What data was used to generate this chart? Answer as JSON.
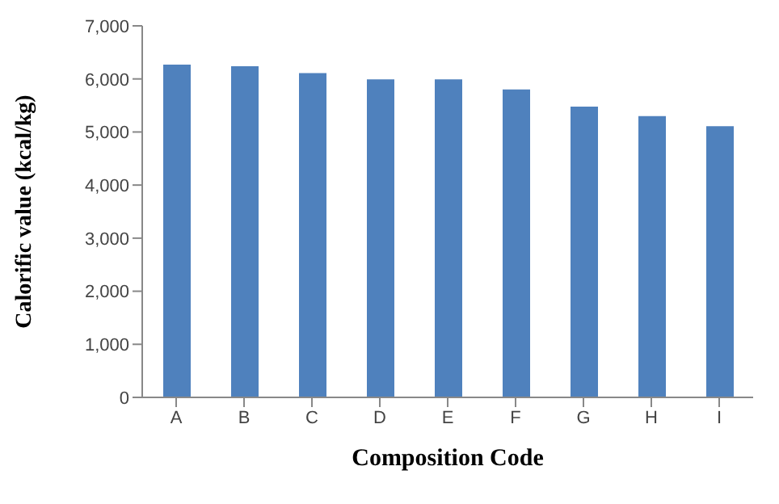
{
  "chart_data": {
    "type": "bar",
    "xlabel": "Composition Code",
    "ylabel": "Calorific value (kcal/kg)",
    "categories": [
      "A",
      "B",
      "C",
      "D",
      "E",
      "F",
      "G",
      "H",
      "I"
    ],
    "values": [
      6270,
      6240,
      6110,
      5990,
      5990,
      5800,
      5480,
      5300,
      5110
    ],
    "color": "#4f81bd",
    "ylim": [
      0,
      7000
    ],
    "yticks": [
      0,
      {
        "value": 1000,
        "label": "1,000"
      },
      {
        "value": 2000,
        "label": "2,000"
      },
      {
        "value": 3000,
        "label": "3,000"
      },
      {
        "value": 4000,
        "label": "4,000"
      },
      {
        "value": 5000,
        "label": "5,000"
      },
      {
        "value": 6000,
        "label": "6,000"
      },
      {
        "value": 7000,
        "label": "7,000"
      }
    ],
    "grid": false
  }
}
